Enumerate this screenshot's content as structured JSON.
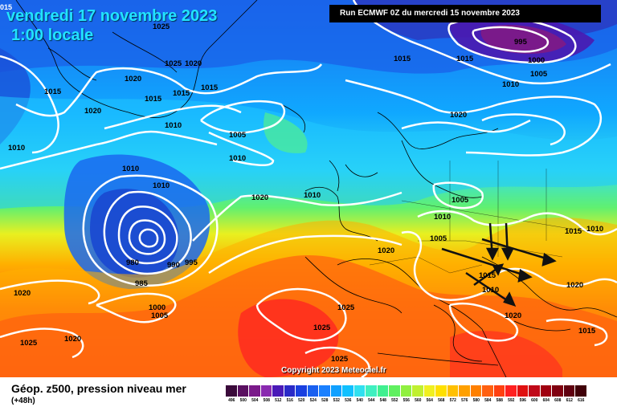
{
  "title": {
    "date": "vendredi 17 novembre 2023",
    "time": "1:00 locale",
    "corner_value": "015"
  },
  "run_info": "Run ECMWF 0Z du mercredi 15 novembre 2023",
  "copyright": "Copyright 2023 Meteociel.fr",
  "caption": {
    "main": "Géop. z500, pression niveau mer",
    "offset": "(+48h)"
  },
  "colors": {
    "isobar": "#ffffff",
    "arrows": "#111111",
    "coastline": "#000000"
  },
  "colorbar": {
    "labels": [
      "496",
      "500",
      "504",
      "508",
      "512",
      "516",
      "520",
      "524",
      "528",
      "532",
      "536",
      "540",
      "544",
      "548",
      "552",
      "556",
      "560",
      "564",
      "568",
      "572",
      "576",
      "580",
      "584",
      "588",
      "592",
      "596",
      "600",
      "604",
      "608",
      "612",
      "616"
    ],
    "colors": [
      "#3a0a3a",
      "#5a1060",
      "#7a1a8a",
      "#8a2ab0",
      "#4a1ab8",
      "#2a2ac8",
      "#1a40e0",
      "#1a60f0",
      "#1a80ff",
      "#10a0ff",
      "#10c0ff",
      "#30e0f0",
      "#40f0c0",
      "#40f090",
      "#60f060",
      "#90f040",
      "#c0f030",
      "#f0f020",
      "#ffe000",
      "#ffc000",
      "#ffa000",
      "#ff8000",
      "#ff6010",
      "#ff4010",
      "#ff2020",
      "#e01010",
      "#c00818",
      "#a00010",
      "#800010",
      "#600010",
      "#400008"
    ]
  },
  "isobars": [
    {
      "value": "1025",
      "note": "Greenland"
    },
    {
      "value": "1025"
    },
    {
      "value": "1020"
    },
    {
      "value": "1015"
    },
    {
      "value": "1015"
    },
    {
      "value": "1020"
    },
    {
      "value": "1020"
    },
    {
      "value": "1015"
    },
    {
      "value": "1015"
    },
    {
      "value": "1010"
    },
    {
      "value": "1010"
    },
    {
      "value": "1005"
    },
    {
      "value": "1010"
    },
    {
      "value": "1010"
    },
    {
      "value": "1010"
    },
    {
      "value": "1015"
    },
    {
      "value": "995"
    },
    {
      "value": "1000"
    },
    {
      "value": "1005"
    },
    {
      "value": "1010"
    },
    {
      "value": "1015"
    },
    {
      "value": "1020"
    },
    {
      "value": "1010"
    },
    {
      "value": "1005"
    },
    {
      "value": "1010"
    },
    {
      "value": "1005"
    },
    {
      "value": "1015"
    },
    {
      "value": "1010"
    },
    {
      "value": "1020"
    },
    {
      "value": "980"
    },
    {
      "value": "985"
    },
    {
      "value": "990"
    },
    {
      "value": "995"
    },
    {
      "value": "1000"
    },
    {
      "value": "1005"
    },
    {
      "value": "1020"
    },
    {
      "value": "1025"
    },
    {
      "value": "1020"
    },
    {
      "value": "1025"
    },
    {
      "value": "1025"
    },
    {
      "value": "1025"
    },
    {
      "value": "1020"
    },
    {
      "value": "1020"
    },
    {
      "value": "1015"
    },
    {
      "value": "1020"
    },
    {
      "value": "1015"
    },
    {
      "value": "1010"
    }
  ]
}
